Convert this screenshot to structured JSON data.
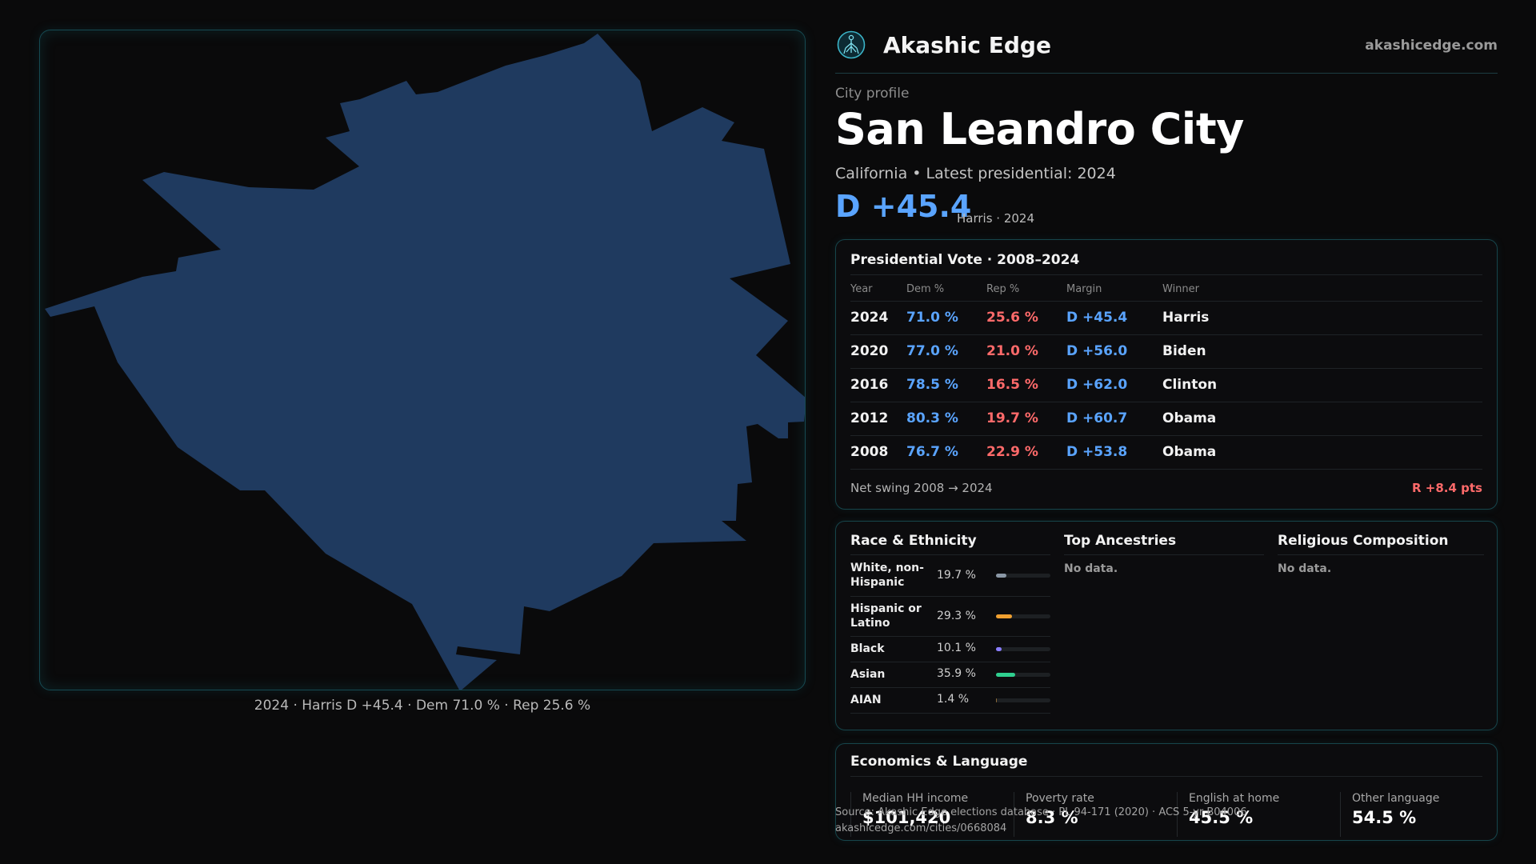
{
  "map": {
    "caption": "2024 · Harris D +45.4 · Dem 71.0 % · Rep 25.6 %",
    "fill_color": "#1f3a5f"
  },
  "brand": {
    "name": "Akashic Edge",
    "url": "akashicedge.com",
    "logo_icon": "tree-of-life-icon"
  },
  "profile": {
    "eyebrow": "City profile",
    "title": "San Leandro City",
    "subtitle": "California • Latest presidential: 2024",
    "margin": "D +45.4",
    "margin_note": "Harris · 2024"
  },
  "presidential": {
    "title": "Presidential Vote · 2008–2024",
    "headers": [
      "Year",
      "Dem %",
      "Rep %",
      "Margin",
      "Winner"
    ],
    "rows": [
      {
        "year": "2024",
        "dem": "71.0 %",
        "rep": "25.6 %",
        "margin": "D +45.4",
        "winner": "Harris"
      },
      {
        "year": "2020",
        "dem": "77.0 %",
        "rep": "21.0 %",
        "margin": "D +56.0",
        "winner": "Biden"
      },
      {
        "year": "2016",
        "dem": "78.5 %",
        "rep": "16.5 %",
        "margin": "D +62.0",
        "winner": "Clinton"
      },
      {
        "year": "2012",
        "dem": "80.3 %",
        "rep": "19.7 %",
        "margin": "D +60.7",
        "winner": "Obama"
      },
      {
        "year": "2008",
        "dem": "76.7 %",
        "rep": "22.9 %",
        "margin": "D +53.8",
        "winner": "Obama"
      }
    ],
    "swing_label": "Net swing 2008 → 2024",
    "swing_value": "R +8.4 pts"
  },
  "race": {
    "title": "Race & Ethnicity",
    "rows": [
      {
        "label": "White, non-Hispanic",
        "pct": "19.7 %",
        "value": 19.7,
        "color": "#8b98a6"
      },
      {
        "label": "Hispanic or Latino",
        "pct": "29.3 %",
        "value": 29.3,
        "color": "#f0a030"
      },
      {
        "label": "Black",
        "pct": "10.1 %",
        "value": 10.1,
        "color": "#8a7dff"
      },
      {
        "label": "Asian",
        "pct": "35.9 %",
        "value": 35.9,
        "color": "#2fcf8f"
      },
      {
        "label": "AIAN",
        "pct": "1.4 %",
        "value": 1.4,
        "color": "#8b6a3a"
      }
    ]
  },
  "ancestries": {
    "title": "Top Ancestries",
    "empty": "No data."
  },
  "religion": {
    "title": "Religious Composition",
    "empty": "No data."
  },
  "economics": {
    "title": "Economics & Language",
    "items": [
      {
        "label": "Median HH income",
        "value": "$101,420"
      },
      {
        "label": "Poverty rate",
        "value": "8.3 %"
      },
      {
        "label": "English at home",
        "value": "45.5 %"
      },
      {
        "label": "Other language",
        "value": "54.5 %"
      }
    ]
  },
  "source": {
    "line1": "Source: Akashic Edge elections database · PL 94-171 (2020) · ACS 5-yr B04006",
    "line2": "akashicedge.com/cities/0668084"
  }
}
